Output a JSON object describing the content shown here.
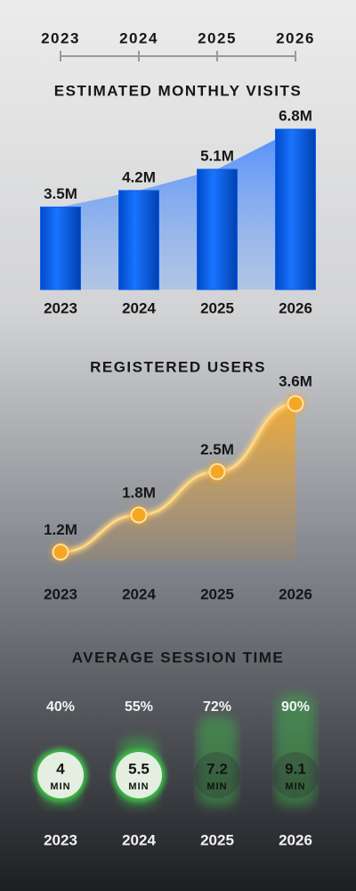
{
  "timeline": {
    "years": [
      "2023",
      "2024",
      "2025",
      "2026"
    ]
  },
  "chart_data": [
    {
      "type": "bar",
      "title": "ESTIMATED MONTHLY VISITS",
      "categories": [
        "2023",
        "2024",
        "2025",
        "2026"
      ],
      "values": [
        3500000,
        4200000,
        5100000,
        6800000
      ],
      "value_labels": [
        "3.5M",
        "4.2M",
        "5.1M",
        "6.8M"
      ],
      "color": "#0a5ff0"
    },
    {
      "type": "line",
      "title": "REGISTERED USERS",
      "categories": [
        "2023",
        "2024",
        "2025",
        "2026"
      ],
      "values": [
        1200000,
        1800000,
        2500000,
        3600000
      ],
      "value_labels": [
        "1.2M",
        "1.8M",
        "2.5M",
        "3.6M"
      ],
      "color": "#f5a623"
    },
    {
      "type": "progress",
      "title": "AVERAGE SESSION TIME",
      "categories": [
        "2023",
        "2024",
        "2025",
        "2026"
      ],
      "values": [
        4,
        5.5,
        7.2,
        9.1
      ],
      "unit": "MIN",
      "percentages": {
        "values": [
          40,
          55,
          72,
          90
        ],
        "value_labels": [
          "40%",
          "55%",
          "72%",
          "90%"
        ]
      },
      "color": "#3dbb4a"
    }
  ]
}
